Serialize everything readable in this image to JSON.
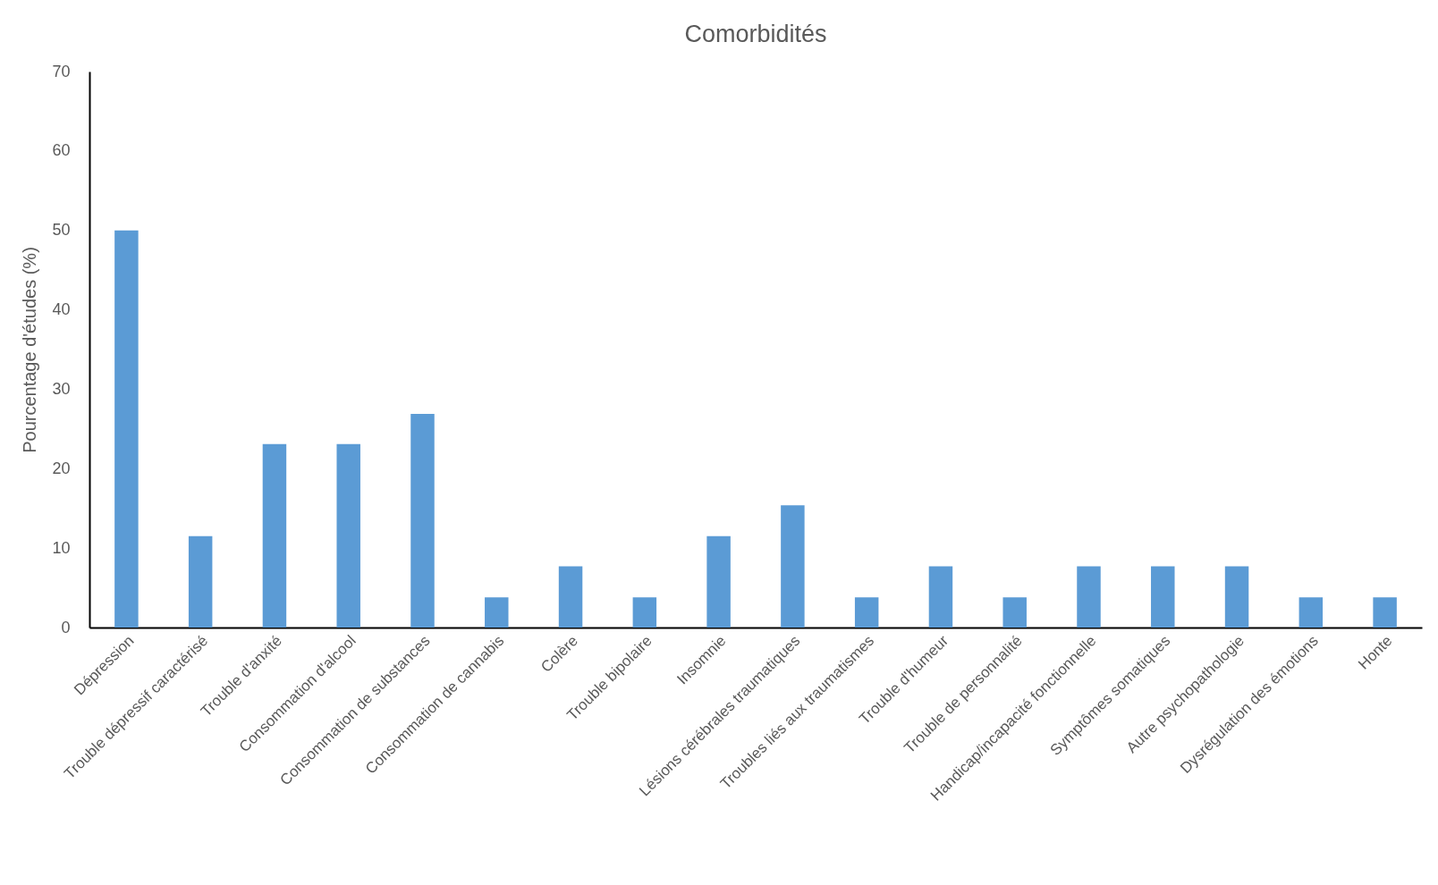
{
  "chart_data": {
    "type": "bar",
    "title": "Comorbidités",
    "ylabel": "Pourcentage d'études (%)",
    "categories": [
      "Dépression",
      "Trouble dépressif caractérisé",
      "Trouble d'anxité",
      "Consommation d'alcool",
      "Consommation de substances",
      "Consommation de cannabis",
      "Colère",
      "Trouble bipolaire",
      "Insomnie",
      "Lésions cérébrales traumatiques",
      "Troubles liés aux traumatismes",
      "Trouble d'humeur",
      "Trouble de personnalité",
      "Handicap/incapacité fonctionnelle",
      "Symptômes somatiques",
      "Autre psychopathologie",
      "Dysrégulation des émotions",
      "Honte"
    ],
    "values": [
      50,
      11.5,
      23.1,
      23.1,
      26.9,
      3.8,
      7.7,
      3.8,
      11.5,
      15.4,
      3.8,
      7.7,
      3.8,
      7.7,
      7.7,
      7.7,
      3.8,
      3.8
    ],
    "color": "#5b9bd5",
    "ylim": [
      0,
      70
    ],
    "yticks": [
      0,
      10,
      20,
      30,
      40,
      50,
      60,
      70
    ],
    "grid": false
  }
}
